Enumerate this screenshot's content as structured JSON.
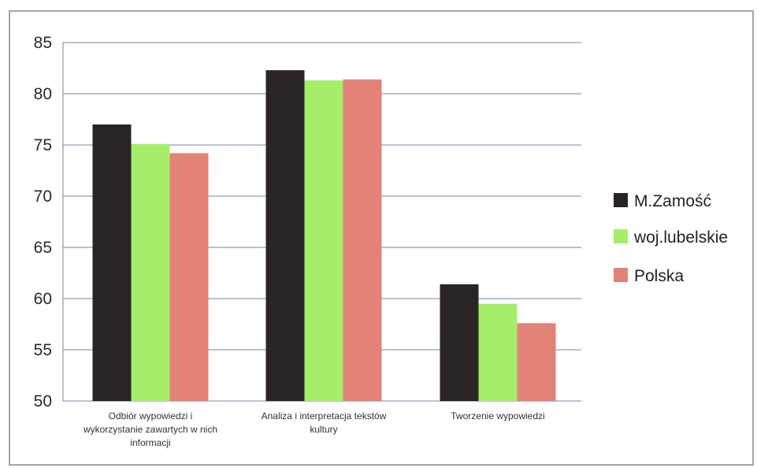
{
  "chart_data": {
    "type": "bar",
    "categories": [
      [
        "Odbiór wypowiedzi i",
        "wykorzystanie zawartych w nich",
        "informacji"
      ],
      [
        "Analiza i interpretacja tekstów",
        "kultury"
      ],
      [
        "Tworzenie wypowiedzi"
      ]
    ],
    "series": [
      {
        "name": "M.Zamość",
        "color": "#2b2424",
        "values": [
          77.0,
          82.3,
          61.4
        ]
      },
      {
        "name": "woj.lubelskie",
        "color": "#a6ee6a",
        "values": [
          75.1,
          81.3,
          59.5
        ]
      },
      {
        "name": "Polska",
        "color": "#e38377",
        "values": [
          74.2,
          81.4,
          57.6
        ]
      }
    ],
    "ylim": [
      50,
      85
    ],
    "yticks": [
      50,
      55,
      60,
      65,
      70,
      75,
      80,
      85
    ],
    "grid": true,
    "legend": "right",
    "title": "",
    "xlabel": "",
    "ylabel": ""
  }
}
